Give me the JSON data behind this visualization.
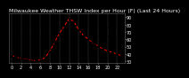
{
  "title": "Milwaukee Weather THSW Index per Hour (F) (Last 24 Hours)",
  "hours": [
    0,
    1,
    2,
    3,
    4,
    5,
    6,
    7,
    8,
    9,
    10,
    11,
    12,
    13,
    14,
    15,
    16,
    17,
    18,
    19,
    20,
    21,
    22,
    23
  ],
  "values": [
    38,
    36,
    34,
    33,
    32,
    31,
    32,
    35,
    44,
    56,
    68,
    78,
    88,
    84,
    73,
    65,
    60,
    55,
    51,
    47,
    44,
    42,
    40,
    37
  ],
  "line_color": "#ff0000",
  "marker_color": "#000000",
  "bg_color": "#000000",
  "plot_bg": "#000000",
  "grid_color": "#888888",
  "text_color": "#ffffff",
  "ylim": [
    28,
    95
  ],
  "yticks": [
    30,
    40,
    50,
    60,
    70,
    80,
    90
  ],
  "title_fontsize": 4.5,
  "tick_fontsize": 3.5
}
